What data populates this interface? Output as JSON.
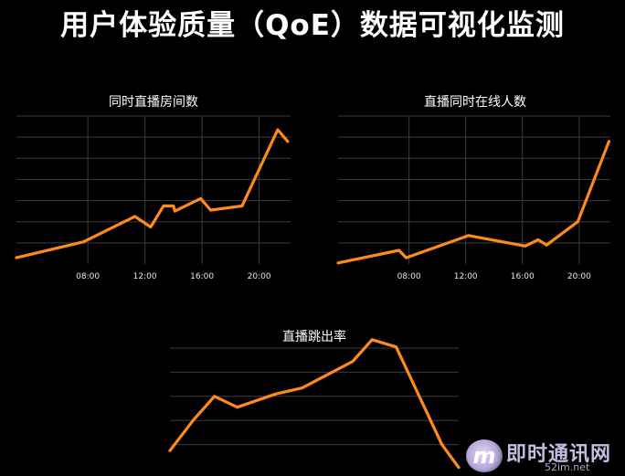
{
  "title": "用户体验质量（QoE）数据可视化监测",
  "colors": {
    "background": "#000000",
    "line": "#ff8a1c",
    "grid": "#3c3c3c",
    "text": "#ffffff"
  },
  "watermark": {
    "logo_letter": "m",
    "text": "即时通讯网",
    "url": "52im.net"
  },
  "chart_data": [
    {
      "id": "rooms",
      "type": "line",
      "title": "同时直播房间数",
      "xlabel": "",
      "ylabel": "",
      "x_ticks": [
        "08:00",
        "12:00",
        "16:00",
        "20:00"
      ],
      "xlim": [
        3.0,
        22.2
      ],
      "ylim": [
        0,
        7
      ],
      "grid": true,
      "series": [
        {
          "x": [
            3.0,
            7.7,
            11.3,
            12.4,
            13.3,
            14.0,
            14.1,
            15.9,
            16.6,
            18.8,
            21.3,
            22.0
          ],
          "y": [
            0.3,
            1.05,
            2.25,
            1.75,
            2.75,
            2.75,
            2.5,
            3.1,
            2.55,
            2.75,
            6.35,
            5.8
          ]
        }
      ]
    },
    {
      "id": "concurrent-viewers",
      "type": "line",
      "title": "直播同时在线人数",
      "xlabel": "",
      "ylabel": "",
      "x_ticks": [
        "08:00",
        "12:00",
        "16:00",
        "20:00"
      ],
      "xlim": [
        3.0,
        22.2
      ],
      "ylim": [
        0,
        7
      ],
      "grid": true,
      "series": [
        {
          "x": [
            3.0,
            7.3,
            7.8,
            12.2,
            16.2,
            17.1,
            17.7,
            19.9,
            22.1
          ],
          "y": [
            0.05,
            0.65,
            0.3,
            1.35,
            0.85,
            1.15,
            0.9,
            2.0,
            5.8
          ]
        }
      ]
    },
    {
      "id": "abandon-rate",
      "type": "line",
      "title": "直播跳出率",
      "xlabel": "",
      "ylabel": "",
      "xlim": [
        0,
        12
      ],
      "ylim": [
        0,
        5
      ],
      "grid": true,
      "series": [
        {
          "x": [
            0.0,
            1.0,
            1.85,
            2.8,
            4.4,
            5.5,
            7.6,
            8.4,
            9.4,
            11.3,
            12.0
          ],
          "y": [
            0.75,
            2.05,
            3.0,
            2.55,
            3.1,
            3.35,
            4.45,
            5.35,
            5.05,
            1.0,
            0.05
          ]
        }
      ]
    }
  ]
}
